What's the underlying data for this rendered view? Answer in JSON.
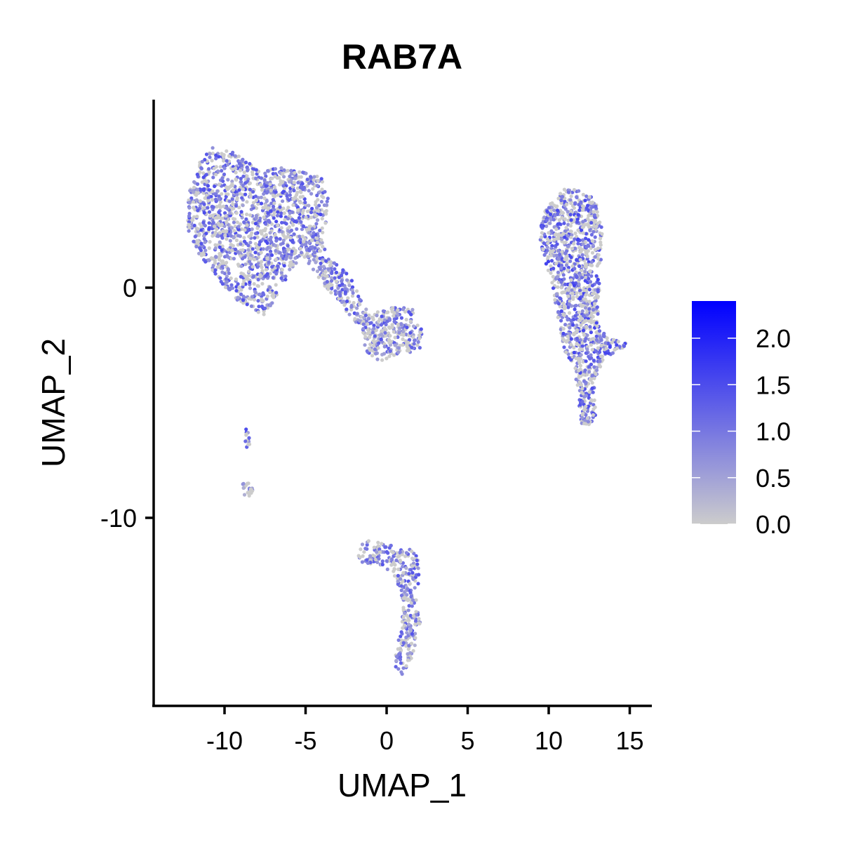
{
  "chart_data": {
    "type": "scatter",
    "title": "RAB7A",
    "xlabel": "UMAP_1",
    "ylabel": "UMAP_2",
    "xlim": [
      -14.5,
      16.5
    ],
    "ylim": [
      -18,
      8.2
    ],
    "x_ticks": [
      -10,
      -5,
      0,
      5,
      10,
      15
    ],
    "x_tick_labels": [
      "-10",
      "-5",
      "0",
      "5",
      "10",
      "15"
    ],
    "y_ticks": [
      0,
      -10
    ],
    "y_tick_labels": [
      "0",
      "-10"
    ],
    "grid": false,
    "legend": {
      "placement": "right",
      "type": "colorbar",
      "min": 0.0,
      "max": 2.4,
      "ticks": [
        0.0,
        0.5,
        1.0,
        1.5,
        2.0
      ],
      "tick_labels": [
        "0.0",
        "0.5",
        "1.0",
        "1.5",
        "2.0"
      ],
      "low_color": "#cccccc",
      "high_color": "#0000ff"
    },
    "point_colors": {
      "low": "#cccccc",
      "mid": "#9b7be8",
      "high": "#6a3af0"
    },
    "clusters": [
      {
        "id": "upper-left-lobe",
        "hull": [
          [
            -12.3,
            2.5
          ],
          [
            -12.2,
            4.2
          ],
          [
            -11.6,
            5.5
          ],
          [
            -10.8,
            6.1
          ],
          [
            -9.5,
            5.9
          ],
          [
            -8.4,
            5.4
          ],
          [
            -7.9,
            5.1
          ],
          [
            -6.5,
            5.2
          ],
          [
            -5.2,
            5.1
          ],
          [
            -4.0,
            4.8
          ],
          [
            -3.6,
            3.9
          ],
          [
            -3.8,
            2.5
          ],
          [
            -4.8,
            1.8
          ],
          [
            -6.0,
            0.6
          ],
          [
            -7.0,
            -0.6
          ],
          [
            -7.5,
            -1.2
          ],
          [
            -8.4,
            -0.9
          ],
          [
            -9.5,
            -0.4
          ],
          [
            -10.6,
            0.6
          ],
          [
            -11.6,
            1.5
          ]
        ],
        "n": 1500,
        "mean_expr": 0.75
      },
      {
        "id": "bridge-arm",
        "hull": [
          [
            -5.2,
            1.4
          ],
          [
            -4.4,
            2.6
          ],
          [
            -3.4,
            1.2
          ],
          [
            -2.2,
            0.5
          ],
          [
            -1.0,
            -1.2
          ],
          [
            0.2,
            -0.8
          ],
          [
            1.6,
            -0.9
          ],
          [
            2.2,
            -1.8
          ],
          [
            2.0,
            -2.9
          ],
          [
            1.0,
            -2.8
          ],
          [
            -0.4,
            -3.2
          ],
          [
            -1.2,
            -2.8
          ],
          [
            -1.8,
            -1.6
          ],
          [
            -3.0,
            -0.6
          ],
          [
            -4.2,
            0.4
          ]
        ],
        "n": 500,
        "mean_expr": 0.6
      },
      {
        "id": "right-cluster",
        "hull": [
          [
            9.4,
            2.5
          ],
          [
            9.9,
            3.6
          ],
          [
            11.0,
            4.3
          ],
          [
            12.0,
            4.3
          ],
          [
            12.9,
            3.8
          ],
          [
            13.3,
            2.5
          ],
          [
            13.2,
            0.8
          ],
          [
            13.0,
            -1.6
          ],
          [
            13.7,
            -2.2
          ],
          [
            14.9,
            -2.4
          ],
          [
            14.6,
            -2.7
          ],
          [
            13.4,
            -3.0
          ],
          [
            12.8,
            -4.2
          ],
          [
            12.9,
            -5.6
          ],
          [
            12.5,
            -6.0
          ],
          [
            12.0,
            -5.9
          ],
          [
            11.8,
            -4.6
          ],
          [
            11.6,
            -3.5
          ],
          [
            11.0,
            -2.8
          ],
          [
            10.6,
            -1.4
          ],
          [
            10.2,
            0.2
          ],
          [
            9.6,
            1.5
          ]
        ],
        "n": 1200,
        "mean_expr": 0.9
      },
      {
        "id": "bottom-cluster",
        "hull": [
          [
            -1.8,
            -11.6
          ],
          [
            -1.4,
            -11.0
          ],
          [
            -0.4,
            -10.9
          ],
          [
            0.6,
            -11.3
          ],
          [
            1.4,
            -11.3
          ],
          [
            2.0,
            -11.8
          ],
          [
            2.0,
            -12.7
          ],
          [
            1.9,
            -13.4
          ],
          [
            2.1,
            -14.4
          ],
          [
            1.9,
            -15.2
          ],
          [
            1.5,
            -16.2
          ],
          [
            1.0,
            -16.9
          ],
          [
            0.6,
            -16.8
          ],
          [
            0.5,
            -15.9
          ],
          [
            0.8,
            -15.0
          ],
          [
            1.0,
            -14.0
          ],
          [
            0.9,
            -13.3
          ],
          [
            0.2,
            -12.3
          ],
          [
            -0.6,
            -12.0
          ],
          [
            -1.7,
            -12.1
          ]
        ],
        "n": 330,
        "mean_expr": 0.55
      },
      {
        "id": "small-islet-upper",
        "hull": [
          [
            -8.75,
            -6.1
          ],
          [
            -8.5,
            -6.1
          ],
          [
            -8.45,
            -6.9
          ],
          [
            -8.7,
            -7.0
          ]
        ],
        "n": 14,
        "mean_expr": 0.8
      },
      {
        "id": "small-islet-lower",
        "hull": [
          [
            -8.9,
            -8.5
          ],
          [
            -8.4,
            -8.4
          ],
          [
            -8.2,
            -8.9
          ],
          [
            -8.5,
            -9.1
          ],
          [
            -8.95,
            -9.0
          ]
        ],
        "n": 22,
        "mean_expr": 0.5
      }
    ]
  }
}
